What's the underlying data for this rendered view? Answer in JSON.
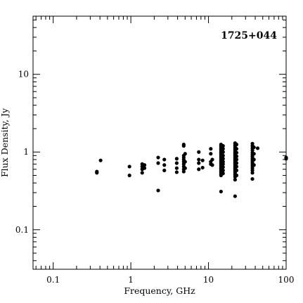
{
  "chart_data": {
    "type": "scatter",
    "title": "1725+044",
    "xlabel": "Frequency, GHz",
    "ylabel": "Flux Density, Jy",
    "xscale": "log",
    "yscale": "log",
    "xlim": [
      0.055,
      100
    ],
    "ylim": [
      0.031,
      56
    ],
    "x_ticks": [
      0.1,
      1,
      10,
      100
    ],
    "x_tick_labels": [
      "0.1",
      "1",
      "10",
      "100"
    ],
    "y_ticks": [
      0.1,
      1,
      10
    ],
    "y_tick_labels": [
      "0.1",
      "1",
      "10"
    ],
    "grid": false,
    "legend": "none",
    "label_position": "top-right",
    "color": "#000000",
    "points": [
      [
        0.365,
        0.54
      ],
      [
        0.365,
        0.56
      ],
      [
        0.408,
        0.78
      ],
      [
        0.96,
        0.65
      ],
      [
        0.96,
        0.5
      ],
      [
        1.4,
        0.7
      ],
      [
        1.4,
        0.65
      ],
      [
        1.4,
        0.6
      ],
      [
        1.4,
        0.54
      ],
      [
        1.5,
        0.68
      ],
      [
        1.5,
        0.62
      ],
      [
        2.25,
        0.85
      ],
      [
        2.25,
        0.72
      ],
      [
        2.25,
        0.32
      ],
      [
        2.7,
        0.8
      ],
      [
        2.7,
        0.68
      ],
      [
        2.7,
        0.58
      ],
      [
        3.9,
        0.82
      ],
      [
        3.9,
        0.72
      ],
      [
        3.9,
        0.62
      ],
      [
        3.9,
        0.55
      ],
      [
        4.8,
        1.25
      ],
      [
        4.8,
        1.2
      ],
      [
        4.8,
        0.9
      ],
      [
        4.8,
        0.85
      ],
      [
        4.8,
        0.8
      ],
      [
        4.8,
        0.75
      ],
      [
        4.8,
        0.7
      ],
      [
        4.8,
        0.65
      ],
      [
        4.8,
        0.6
      ],
      [
        4.8,
        0.56
      ],
      [
        5.0,
        0.95
      ],
      [
        5.0,
        0.75
      ],
      [
        5.0,
        0.62
      ],
      [
        7.5,
        1.0
      ],
      [
        7.5,
        0.8
      ],
      [
        7.5,
        0.72
      ],
      [
        7.5,
        0.6
      ],
      [
        8.4,
        0.78
      ],
      [
        8.4,
        0.63
      ],
      [
        10.7,
        1.1
      ],
      [
        10.7,
        0.95
      ],
      [
        10.7,
        0.75
      ],
      [
        10.7,
        0.7
      ],
      [
        11.2,
        0.8
      ],
      [
        11.2,
        0.68
      ],
      [
        14.5,
        1.25
      ],
      [
        14.5,
        1.2
      ],
      [
        14.5,
        1.15
      ],
      [
        14.5,
        1.1
      ],
      [
        14.5,
        1.05
      ],
      [
        14.5,
        1.0
      ],
      [
        14.5,
        0.96
      ],
      [
        14.5,
        0.92
      ],
      [
        14.5,
        0.88
      ],
      [
        14.5,
        0.84
      ],
      [
        14.5,
        0.8
      ],
      [
        14.5,
        0.77
      ],
      [
        14.5,
        0.74
      ],
      [
        14.5,
        0.71
      ],
      [
        14.5,
        0.68
      ],
      [
        14.5,
        0.65
      ],
      [
        14.5,
        0.62
      ],
      [
        14.5,
        0.6
      ],
      [
        14.5,
        0.57
      ],
      [
        14.5,
        0.55
      ],
      [
        14.5,
        0.52
      ],
      [
        14.5,
        0.5
      ],
      [
        14.5,
        0.31
      ],
      [
        15.4,
        1.2
      ],
      [
        15.4,
        1.1
      ],
      [
        15.4,
        1.0
      ],
      [
        15.4,
        0.9
      ],
      [
        15.4,
        0.82
      ],
      [
        15.4,
        0.75
      ],
      [
        15.4,
        0.7
      ],
      [
        15.4,
        0.64
      ],
      [
        15.4,
        0.58
      ],
      [
        15.4,
        0.53
      ],
      [
        22.0,
        1.3
      ],
      [
        22.0,
        1.25
      ],
      [
        22.0,
        1.2
      ],
      [
        22.0,
        1.15
      ],
      [
        22.0,
        1.1
      ],
      [
        22.0,
        1.05
      ],
      [
        22.0,
        1.0
      ],
      [
        22.0,
        0.96
      ],
      [
        22.0,
        0.92
      ],
      [
        22.0,
        0.88
      ],
      [
        22.0,
        0.84
      ],
      [
        22.0,
        0.8
      ],
      [
        22.0,
        0.77
      ],
      [
        22.0,
        0.74
      ],
      [
        22.0,
        0.71
      ],
      [
        22.0,
        0.68
      ],
      [
        22.0,
        0.65
      ],
      [
        22.0,
        0.62
      ],
      [
        22.0,
        0.6
      ],
      [
        22.0,
        0.57
      ],
      [
        22.0,
        0.54
      ],
      [
        22.0,
        0.51
      ],
      [
        22.0,
        0.48
      ],
      [
        22.0,
        0.44
      ],
      [
        22.0,
        0.27
      ],
      [
        23.0,
        1.25
      ],
      [
        23.0,
        1.1
      ],
      [
        23.0,
        0.98
      ],
      [
        23.0,
        0.88
      ],
      [
        23.0,
        0.8
      ],
      [
        23.0,
        0.72
      ],
      [
        23.0,
        0.65
      ],
      [
        23.0,
        0.58
      ],
      [
        23.0,
        0.5
      ],
      [
        36.8,
        1.28
      ],
      [
        36.8,
        1.2
      ],
      [
        36.8,
        1.12
      ],
      [
        36.8,
        1.05
      ],
      [
        36.8,
        0.98
      ],
      [
        36.8,
        0.92
      ],
      [
        36.8,
        0.87
      ],
      [
        36.8,
        0.82
      ],
      [
        36.8,
        0.78
      ],
      [
        36.8,
        0.74
      ],
      [
        36.8,
        0.7
      ],
      [
        36.8,
        0.66
      ],
      [
        36.8,
        0.62
      ],
      [
        36.8,
        0.58
      ],
      [
        36.8,
        0.54
      ],
      [
        36.8,
        0.45
      ],
      [
        38.5,
        1.15
      ],
      [
        38.5,
        0.95
      ],
      [
        38.5,
        0.8
      ],
      [
        38.5,
        0.68
      ],
      [
        43.0,
        1.12
      ],
      [
        100,
        0.85
      ],
      [
        100,
        0.82
      ]
    ]
  }
}
